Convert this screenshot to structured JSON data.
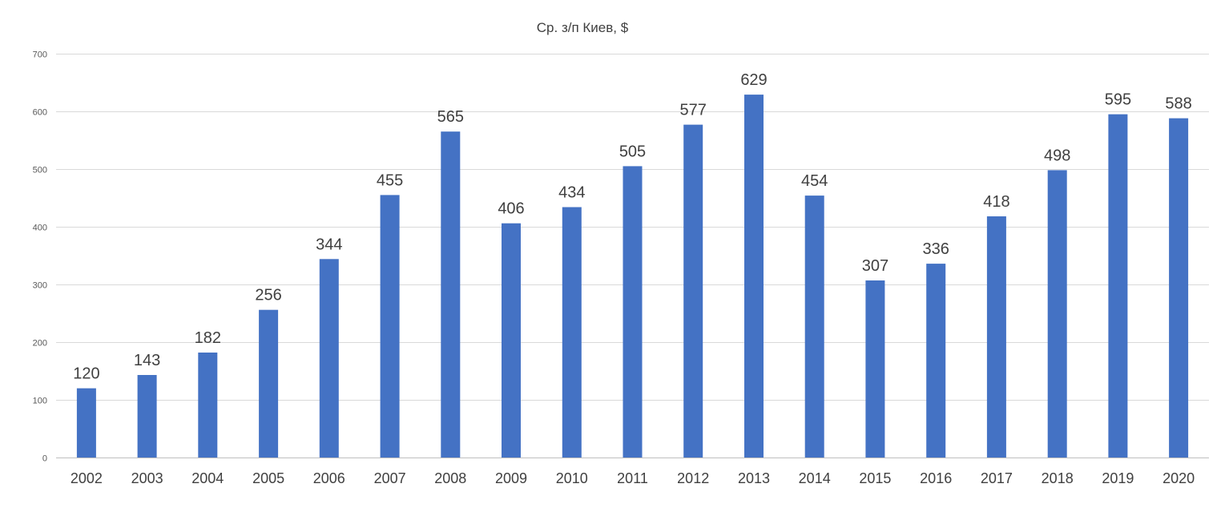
{
  "chart_data": {
    "type": "bar",
    "title": "Ср. з/п Киев, $",
    "xlabel": "",
    "ylabel": "",
    "ylim": [
      0,
      700
    ],
    "yticks": [
      0,
      100,
      200,
      300,
      400,
      500,
      600,
      700
    ],
    "grid": true,
    "legend": "none",
    "categories": [
      "2002",
      "2003",
      "2004",
      "2005",
      "2006",
      "2007",
      "2008",
      "2009",
      "2010",
      "2011",
      "2012",
      "2013",
      "2014",
      "2015",
      "2016",
      "2017",
      "2018",
      "2019",
      "2020"
    ],
    "values": [
      120,
      143,
      182,
      256,
      344,
      455,
      565,
      406,
      434,
      505,
      577,
      629,
      454,
      307,
      336,
      418,
      498,
      595,
      588
    ],
    "bar_color": "#4472C4"
  }
}
